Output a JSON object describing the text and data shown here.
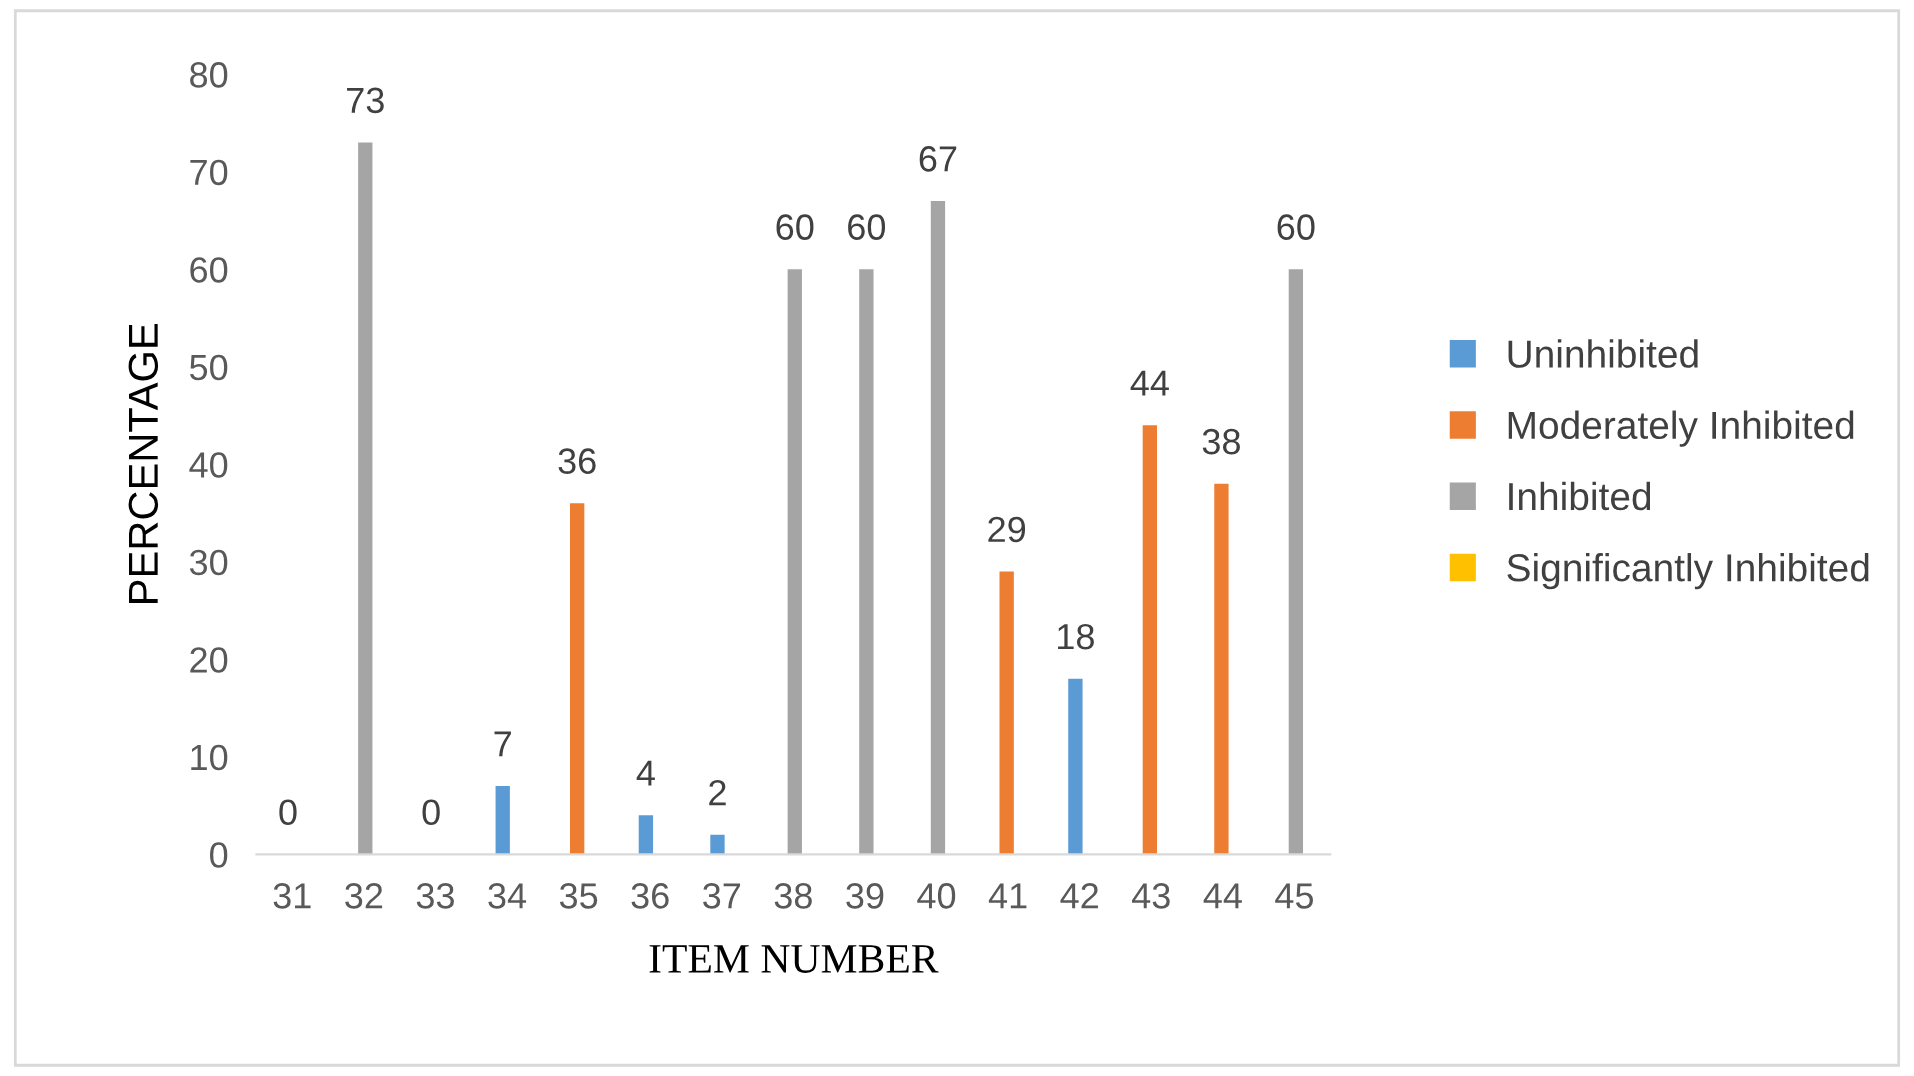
{
  "chart_data": {
    "type": "bar",
    "xlabel": "ITEM NUMBER",
    "ylabel": "PERCENTAGE",
    "categories": [
      "31",
      "32",
      "33",
      "34",
      "35",
      "36",
      "37",
      "38",
      "39",
      "40",
      "41",
      "42",
      "43",
      "44",
      "45"
    ],
    "series": [
      {
        "name": "Uninhibited",
        "color": "#5b9bd5",
        "values": [
          0,
          null,
          0,
          7,
          null,
          4,
          2,
          null,
          null,
          null,
          null,
          18,
          null,
          null,
          null
        ]
      },
      {
        "name": "Moderately Inhibited",
        "color": "#ed7d31",
        "values": [
          null,
          null,
          null,
          null,
          36,
          null,
          null,
          null,
          null,
          null,
          29,
          null,
          44,
          38,
          null
        ]
      },
      {
        "name": "Inhibited",
        "color": "#a5a5a5",
        "values": [
          null,
          73,
          null,
          null,
          null,
          null,
          null,
          60,
          60,
          67,
          null,
          null,
          null,
          null,
          60
        ]
      },
      {
        "name": "Significantly Inhibited",
        "color": "#ffc000",
        "values": [
          null,
          null,
          null,
          null,
          null,
          null,
          null,
          null,
          null,
          null,
          null,
          null,
          null,
          null,
          null
        ]
      }
    ],
    "ylim": [
      0,
      80
    ],
    "yticks": [
      0,
      10,
      20,
      30,
      40,
      50,
      60,
      70,
      80
    ],
    "grid": false,
    "legend": "right",
    "data_labels": true
  }
}
